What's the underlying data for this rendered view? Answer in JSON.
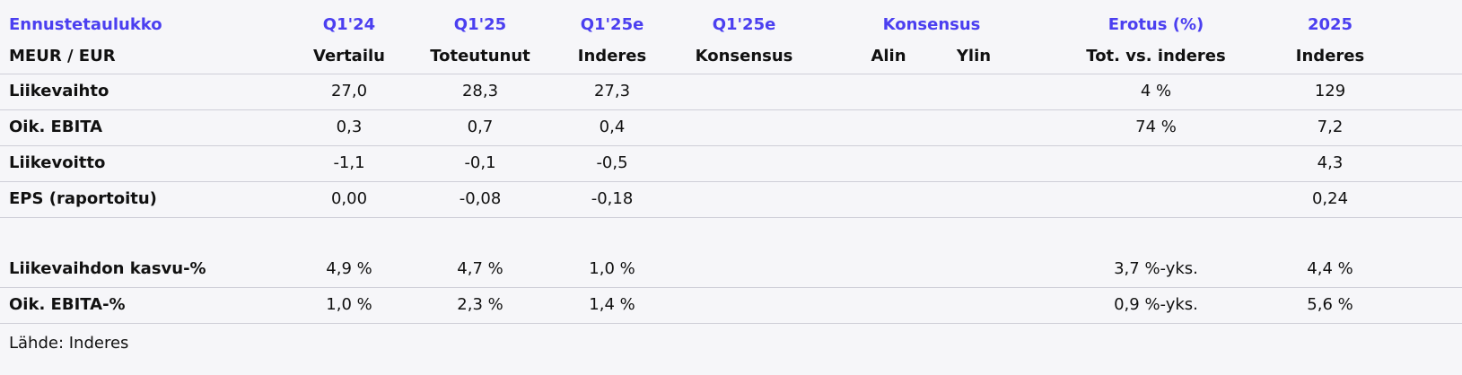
{
  "table": {
    "header_top": [
      "Ennustetaulukko",
      "Q1'24",
      "Q1'25",
      "Q1'25e",
      "Q1'25e",
      "Konsensus",
      "Erotus (%)",
      "2025"
    ],
    "header_sub": [
      "MEUR / EUR",
      "Vertailu",
      "Toteutunut",
      "Inderes",
      "Konsensus",
      "Alin",
      "Ylin",
      "Tot. vs. inderes",
      "Inderes"
    ],
    "rows": [
      [
        "Liikevaihto",
        "27,0",
        "28,3",
        "27,3",
        null,
        null,
        null,
        "4 %",
        "129"
      ],
      [
        "Oik. EBITA",
        "0,3",
        "0,7",
        "0,4",
        null,
        null,
        null,
        "74 %",
        "7,2"
      ],
      [
        "Liikevoitto",
        "-1,1",
        "-0,1",
        "-0,5",
        null,
        null,
        null,
        null,
        "4,3"
      ],
      [
        "EPS (raportoitu)",
        "0,00",
        "-0,08",
        "-0,18",
        null,
        null,
        null,
        null,
        "0,24"
      ],
      [
        "Liikevaihdon kasvu-%",
        "4,9 %",
        "4,7 %",
        "1,0 %",
        null,
        null,
        null,
        "3,7 %-yks.",
        "4,4 %"
      ],
      [
        "Oik. EBITA-%",
        "1,0 %",
        "2,3 %",
        "1,4 %",
        null,
        null,
        null,
        "0,9 %-yks.",
        "5,6 %"
      ]
    ],
    "source": "Lähde: Inderes"
  }
}
